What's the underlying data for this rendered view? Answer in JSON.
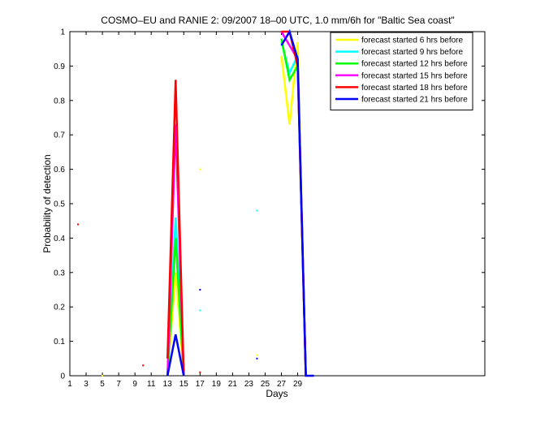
{
  "chart_data": {
    "type": "line",
    "title": "COSMO–EU and RANIE 2: 09/2007 18–00 UTC, 1.0 mm/6h for \"Baltic Sea coast\"",
    "xlabel": "Days",
    "ylabel": "Probability of detection",
    "xlim": [
      1,
      52
    ],
    "ylim": [
      0,
      1
    ],
    "x_ticks": [
      1,
      3,
      5,
      7,
      9,
      11,
      13,
      15,
      17,
      19,
      21,
      23,
      25,
      27,
      29
    ],
    "y_ticks": [
      0,
      0.1,
      0.2,
      0.3,
      0.4,
      0.5,
      0.6,
      0.7,
      0.8,
      0.9,
      1
    ],
    "y_tick_labels": [
      "0",
      "0.1",
      "0.2",
      "0.3",
      "0.4",
      "0.5",
      "0.6",
      "0.7",
      "0.8",
      "0.9",
      "1"
    ],
    "legend_position": "top-right",
    "series": [
      {
        "name": "forecast started 6 hrs before",
        "color": "#ffff00",
        "segments": [
          [
            [
              13,
              0
            ],
            [
              14,
              0.3
            ],
            [
              15,
              0
            ]
          ],
          [
            [
              27,
              0.93
            ],
            [
              28,
              0.73
            ],
            [
              29,
              0.97
            ],
            [
              30,
              0
            ]
          ]
        ],
        "points": [
          [
            2,
            0.44
          ],
          [
            5,
            0
          ],
          [
            17,
            0.6
          ],
          [
            24,
            0.06
          ]
        ]
      },
      {
        "name": "forecast started 9 hrs before",
        "color": "#00ffff",
        "segments": [
          [
            [
              13,
              0
            ],
            [
              14,
              0.46
            ],
            [
              15,
              0
            ]
          ],
          [
            [
              27,
              0.97
            ],
            [
              28,
              0.88
            ],
            [
              29,
              0.93
            ],
            [
              30,
              0
            ]
          ]
        ],
        "points": [
          [
            17,
            0.19
          ],
          [
            24,
            0.48
          ]
        ]
      },
      {
        "name": "forecast started 12 hrs before",
        "color": "#00ff00",
        "segments": [
          [
            [
              13,
              0
            ],
            [
              14,
              0.4
            ],
            [
              15,
              0
            ]
          ],
          [
            [
              27,
              0.98
            ],
            [
              28,
              0.86
            ],
            [
              29,
              0.9
            ],
            [
              30,
              0
            ]
          ]
        ],
        "points": []
      },
      {
        "name": "forecast started 15 hrs before",
        "color": "#ff00ff",
        "segments": [
          [
            [
              13,
              0
            ],
            [
              14,
              0.73
            ],
            [
              15,
              0
            ]
          ],
          [
            [
              27,
              1.0
            ],
            [
              28,
              0.96
            ],
            [
              29,
              0.92
            ],
            [
              30,
              0
            ]
          ]
        ],
        "points": []
      },
      {
        "name": "forecast started 18 hrs before",
        "color": "#ff0000",
        "segments": [
          [
            [
              13,
              0.05
            ],
            [
              14,
              0.86
            ],
            [
              15,
              0
            ]
          ],
          [
            [
              27,
              1.0
            ],
            [
              28,
              1.0
            ],
            [
              29,
              0.9
            ],
            [
              30,
              0
            ]
          ]
        ],
        "points": [
          [
            2,
            0.44
          ],
          [
            10,
            0.03
          ],
          [
            17,
            0.01
          ]
        ]
      },
      {
        "name": "forecast started 21 hrs before",
        "color": "#0000ff",
        "segments": [
          [
            [
              13,
              0
            ],
            [
              14,
              0.12
            ],
            [
              15,
              0
            ]
          ],
          [
            [
              27,
              0.96
            ],
            [
              28,
              1.0
            ],
            [
              29,
              0.92
            ],
            [
              30,
              0
            ],
            [
              31,
              0
            ]
          ]
        ],
        "points": [
          [
            17,
            0.25
          ],
          [
            24,
            0.05
          ]
        ]
      }
    ]
  }
}
